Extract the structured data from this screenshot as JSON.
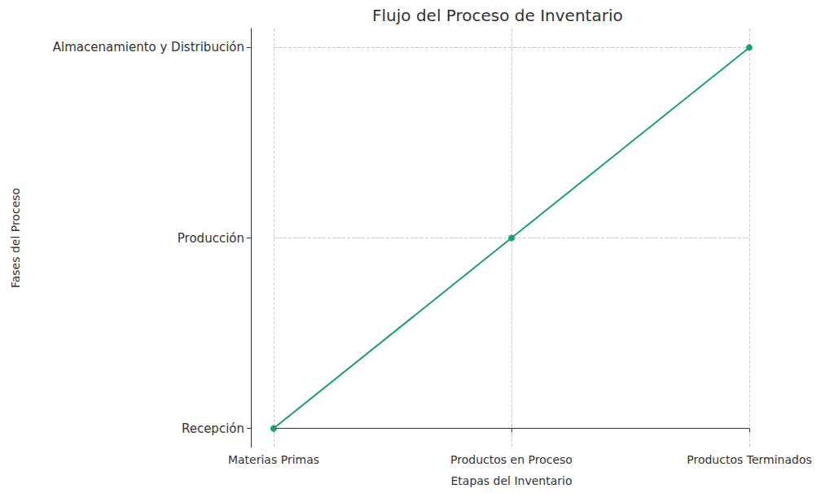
{
  "chart_data": {
    "type": "line",
    "title": "Flujo del Proceso de Inventario",
    "xlabel": "Etapas del Inventario",
    "ylabel": "Fases del Proceso",
    "categories": [
      "Materias Primas",
      "Productos en Proceso",
      "Productos Terminados"
    ],
    "values": [
      0,
      1,
      2
    ],
    "color": "#1a9e7a",
    "marker": "circle",
    "ylim": [
      -0.1,
      2.1
    ],
    "yticks": [
      {
        "value": 0,
        "label": "Recepción"
      },
      {
        "value": 1,
        "label": "Producción"
      },
      {
        "value": 2,
        "label": "Almacenamiento y Distribución"
      }
    ],
    "grid": true
  }
}
